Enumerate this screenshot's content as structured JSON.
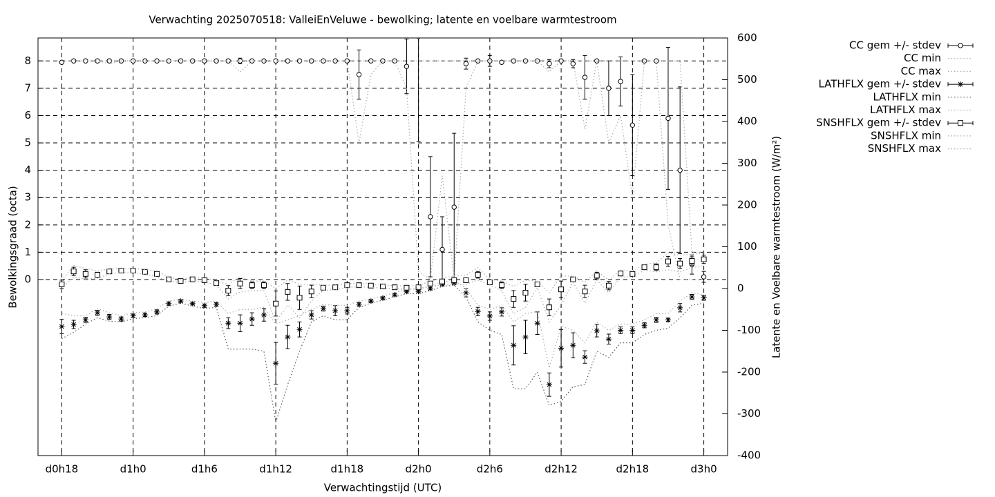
{
  "chart_data": {
    "type": "errorbar",
    "title": "Verwachting 2025070518: ValleiEnVeluwe - bewolking; latente en voelbare warmtestroom",
    "xlabel": "Verwachtingstijd (UTC)",
    "ylabel": "Bewolkingsgraad (octa)",
    "y2label": "Latente en Voelbare warmtestroom (W/m²)",
    "grid": true,
    "legend": "outside-right",
    "x": [
      18,
      19,
      20,
      21,
      22,
      23,
      24,
      25,
      26,
      27,
      28,
      29,
      30,
      31,
      32,
      33,
      34,
      35,
      36,
      37,
      38,
      39,
      40,
      41,
      42,
      43,
      44,
      45,
      46,
      47,
      48,
      49,
      50,
      51,
      52,
      53,
      54,
      55,
      56,
      57,
      58,
      59,
      60,
      61,
      62,
      63,
      64,
      65,
      66,
      67,
      68,
      69,
      70,
      71,
      72
    ],
    "xlim": [
      16,
      74
    ],
    "xticks": [
      {
        "value": 18,
        "label": "d0h18"
      },
      {
        "value": 24,
        "label": "d1h0"
      },
      {
        "value": 30,
        "label": "d1h6"
      },
      {
        "value": 36,
        "label": "d1h12"
      },
      {
        "value": 42,
        "label": "d1h18"
      },
      {
        "value": 48,
        "label": "d2h0"
      },
      {
        "value": 54,
        "label": "d2h6"
      },
      {
        "value": 60,
        "label": "d2h12"
      },
      {
        "value": 66,
        "label": "d2h18"
      },
      {
        "value": 72,
        "label": "d3h0"
      }
    ],
    "ylim": [
      -6.44,
      8.84
    ],
    "yticks": [
      0,
      1,
      2,
      3,
      4,
      5,
      6,
      7,
      8
    ],
    "y2lim": [
      -400,
      600
    ],
    "y2ticks": [
      -400,
      -300,
      -200,
      -100,
      0,
      100,
      200,
      300,
      400,
      500,
      600
    ],
    "series": [
      {
        "name": "CC gem +/- stdev",
        "color": "#000000",
        "marker": "circle",
        "axis": "y",
        "values": [
          7.95,
          8,
          8,
          8,
          8,
          8,
          8,
          8,
          8,
          8,
          8,
          8,
          8,
          8,
          8,
          8,
          8,
          8,
          8,
          8,
          8,
          8,
          8,
          8,
          8,
          7.5,
          8,
          8,
          8,
          7.8,
          8.9,
          2.3,
          1.1,
          2.65,
          7.9,
          8,
          8,
          7.95,
          8,
          8,
          8,
          7.9,
          8,
          7.9,
          7.4,
          8,
          7.0,
          7.25,
          5.65,
          8,
          8,
          5.9,
          4.0,
          0.55,
          0.1
        ],
        "stdev": [
          0.05,
          0,
          0,
          0,
          0.05,
          0,
          0,
          0,
          0,
          0,
          0,
          0,
          0,
          0,
          0.05,
          0.1,
          0,
          0,
          0,
          0,
          0,
          0,
          0,
          0,
          0,
          0.9,
          0,
          0.05,
          0.05,
          1.0,
          3.85,
          2.2,
          1.2,
          2.7,
          0.2,
          0,
          0.2,
          0.05,
          0,
          0,
          0,
          0.15,
          0,
          0.15,
          0.8,
          0,
          1.0,
          0.9,
          1.85,
          0,
          0,
          2.6,
          3.05,
          0.35,
          0.2
        ]
      },
      {
        "name": "CC min",
        "color": "#aaaaaa",
        "axis": "y",
        "values": [
          8,
          8,
          8,
          8,
          7.9,
          8,
          8,
          8,
          8,
          8,
          8,
          8,
          8,
          8,
          8,
          7.6,
          8,
          8,
          8,
          8,
          8,
          8,
          8,
          8,
          8,
          5,
          7.5,
          8,
          8,
          7,
          0.3,
          0,
          3.8,
          0,
          7,
          8,
          8,
          8,
          8,
          8,
          8,
          7.6,
          8,
          8,
          5.5,
          8,
          5,
          6,
          3,
          8,
          8,
          2,
          0,
          0,
          0
        ]
      },
      {
        "name": "CC max",
        "color": "#aaaaaa",
        "axis": "y",
        "values": [
          8,
          8,
          8,
          8,
          8,
          8,
          8,
          8,
          8,
          8,
          8,
          8,
          8,
          8,
          8,
          8,
          8,
          8,
          8,
          8,
          8,
          8,
          8,
          8,
          8,
          8,
          8,
          8,
          8,
          8,
          8,
          8,
          8,
          8,
          8,
          8,
          8,
          8,
          8,
          8,
          8,
          8,
          8,
          8,
          8,
          8,
          8,
          8,
          8,
          8,
          8,
          8,
          8,
          1,
          1
        ]
      },
      {
        "name": "LATHFLX gem +/- stdev",
        "color": "#000000",
        "marker": "star",
        "axis": "y2",
        "values": [
          -91,
          -86,
          -75,
          -58,
          -68,
          -73,
          -65,
          -63,
          -56,
          -36,
          -30,
          -36,
          -41,
          -38,
          -83,
          -83,
          -73,
          -63,
          -179,
          -116,
          -98,
          -63,
          -48,
          -53,
          -53,
          -38,
          -30,
          -23,
          -15,
          -7,
          -7,
          0,
          10,
          13,
          -10,
          -55,
          -66,
          -56,
          -136,
          -116,
          -83,
          -230,
          -143,
          -136,
          -164,
          -101,
          -121,
          -100,
          -100,
          -88,
          -75,
          -75,
          -46,
          -20,
          -22
        ],
        "stdev": [
          17,
          10,
          6,
          6,
          6,
          5,
          4,
          4,
          5,
          4,
          3,
          3,
          4,
          4,
          13,
          20,
          15,
          15,
          50,
          28,
          18,
          10,
          6,
          12,
          8,
          4,
          3,
          3,
          3,
          3,
          3,
          3,
          3,
          3,
          10,
          10,
          10,
          10,
          47,
          40,
          27,
          28,
          45,
          30,
          15,
          15,
          12,
          8,
          8,
          6,
          6,
          4,
          10,
          6,
          6
        ]
      },
      {
        "name": "LATHFLX min",
        "color": "#555555",
        "axis": "y2",
        "values": [
          -120,
          -105,
          -85,
          -70,
          -78,
          -80,
          -72,
          -70,
          -65,
          -42,
          -35,
          -42,
          -48,
          -45,
          -145,
          -145,
          -145,
          -150,
          -320,
          -230,
          -150,
          -80,
          -65,
          -75,
          -75,
          -45,
          -35,
          -28,
          -20,
          -12,
          -12,
          -5,
          5,
          8,
          -20,
          -80,
          -100,
          -110,
          -240,
          -240,
          -200,
          -280,
          -270,
          -235,
          -230,
          -150,
          -165,
          -130,
          -130,
          -110,
          -100,
          -95,
          -70,
          -40,
          -35
        ]
      },
      {
        "name": "LATHFLX max",
        "color": "#aaaaaa",
        "axis": "y2",
        "values": [
          -60,
          -65,
          -65,
          -48,
          -58,
          -65,
          -58,
          -56,
          -48,
          -30,
          -25,
          -30,
          -34,
          -30,
          -60,
          -50,
          -50,
          -45,
          -85,
          -75,
          -65,
          -50,
          -38,
          -40,
          -40,
          -30,
          -25,
          -18,
          -10,
          -2,
          0,
          5,
          15,
          20,
          0,
          -40,
          -50,
          -40,
          -80,
          -60,
          -55,
          -190,
          -90,
          -100,
          -130,
          -80,
          -100,
          -85,
          -85,
          -75,
          -60,
          -60,
          -30,
          -10,
          -15
        ]
      },
      {
        "name": "SNSHFLX gem +/- stdev",
        "color": "#000000",
        "marker": "square",
        "axis": "y2",
        "values": [
          10,
          41,
          35,
          33,
          41,
          43,
          43,
          40,
          35,
          22,
          18,
          22,
          20,
          13,
          -5,
          12,
          8,
          8,
          -36,
          -8,
          -22,
          -7,
          2,
          3,
          8,
          8,
          7,
          5,
          3,
          2,
          3,
          12,
          17,
          20,
          20,
          33,
          15,
          8,
          -25,
          -10,
          10,
          -45,
          -2,
          22,
          -7,
          31,
          7,
          36,
          35,
          51,
          51,
          65,
          60,
          66,
          70
        ],
        "stdev": [
          10,
          10,
          10,
          6,
          4,
          4,
          4,
          4,
          4,
          3,
          3,
          3,
          3,
          4,
          12,
          12,
          8,
          8,
          30,
          20,
          28,
          15,
          4,
          4,
          4,
          3,
          3,
          3,
          3,
          3,
          3,
          4,
          4,
          5,
          5,
          8,
          4,
          8,
          20,
          20,
          5,
          20,
          20,
          5,
          15,
          8,
          10,
          5,
          5,
          5,
          8,
          12,
          12,
          10,
          10
        ]
      },
      {
        "name": "SNSHFLX min",
        "color": "#aaaaaa",
        "axis": "y2",
        "values": [
          0,
          28,
          22,
          25,
          35,
          38,
          38,
          34,
          28,
          18,
          14,
          18,
          16,
          8,
          -25,
          -8,
          -5,
          -5,
          -80,
          -40,
          -70,
          -30,
          -4,
          -3,
          3,
          4,
          3,
          1,
          0,
          -2,
          -1,
          5,
          8,
          10,
          10,
          20,
          8,
          -5,
          -60,
          -45,
          2,
          -80,
          -40,
          15,
          -35,
          20,
          -10,
          28,
          28,
          44,
          40,
          45,
          40,
          50,
          55
        ]
      },
      {
        "name": "SNSHFLX max",
        "color": "#aaaaaa",
        "axis": "y2",
        "values": [
          20,
          55,
          48,
          42,
          48,
          48,
          48,
          46,
          42,
          27,
          22,
          27,
          25,
          18,
          10,
          28,
          18,
          18,
          0,
          20,
          10,
          10,
          8,
          8,
          12,
          12,
          11,
          9,
          7,
          6,
          7,
          18,
          25,
          30,
          32,
          50,
          22,
          18,
          5,
          20,
          18,
          -10,
          30,
          30,
          15,
          42,
          20,
          44,
          42,
          58,
          62,
          85,
          80,
          82,
          85
        ]
      }
    ]
  }
}
